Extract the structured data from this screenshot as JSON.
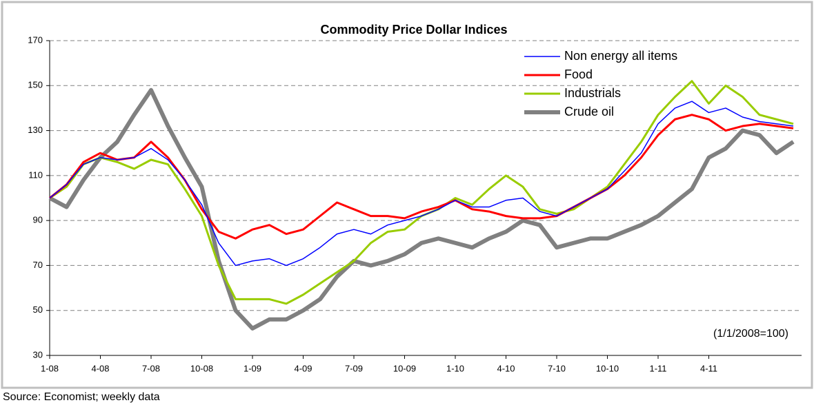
{
  "chart_data": {
    "type": "line",
    "title": "Commodity Price Dollar Indices",
    "annotation": "(1/1/2008=100)",
    "source": "Source: Economist; weekly data",
    "categories": [
      "1-08",
      null,
      null,
      "4-08",
      null,
      null,
      "7-08",
      null,
      null,
      "10-08",
      null,
      null,
      "1-09",
      null,
      null,
      "4-09",
      null,
      null,
      "7-09",
      null,
      null,
      "10-09",
      null,
      null,
      "1-10",
      null,
      null,
      "4-10",
      null,
      null,
      "7-10",
      null,
      null,
      "10-10",
      null,
      null,
      "1-11",
      null,
      null,
      "4-11",
      null,
      null,
      null,
      null,
      null
    ],
    "series": [
      {
        "name": "Non energy all items",
        "color": "#0000ff",
        "width": 1.5,
        "values": [
          100,
          106,
          115,
          118,
          117,
          118,
          122,
          117,
          108,
          97,
          80,
          70,
          72,
          73,
          70,
          73,
          78,
          84,
          86,
          84,
          88,
          90,
          92,
          95,
          99,
          96,
          96,
          99,
          100,
          94,
          92,
          96,
          100,
          104,
          112,
          120,
          133,
          140,
          143,
          138,
          140,
          136,
          134,
          133,
          132
        ]
      },
      {
        "name": "Food",
        "color": "#ff0000",
        "width": 3,
        "values": [
          100,
          106,
          116,
          120,
          117,
          118,
          125,
          118,
          108,
          95,
          85,
          82,
          86,
          88,
          84,
          86,
          92,
          98,
          95,
          92,
          92,
          91,
          94,
          96,
          99,
          95,
          94,
          92,
          91,
          91,
          92,
          96,
          100,
          104,
          110,
          118,
          128,
          135,
          137,
          135,
          130,
          132,
          133,
          132,
          131
        ]
      },
      {
        "name": "Industrials",
        "color": "#99cc00",
        "width": 3,
        "values": [
          100,
          105,
          115,
          118,
          116,
          113,
          117,
          115,
          104,
          92,
          70,
          55,
          55,
          55,
          53,
          57,
          62,
          67,
          72,
          80,
          85,
          86,
          92,
          95,
          100,
          97,
          104,
          110,
          105,
          95,
          93,
          95,
          100,
          105,
          115,
          125,
          137,
          145,
          152,
          142,
          150,
          145,
          137,
          135,
          133
        ]
      },
      {
        "name": "Crude oil",
        "color": "#808080",
        "width": 6,
        "values": [
          100,
          96,
          108,
          118,
          125,
          137,
          148,
          132,
          118,
          105,
          72,
          50,
          42,
          46,
          46,
          50,
          55,
          65,
          72,
          70,
          72,
          75,
          80,
          82,
          80,
          78,
          82,
          85,
          90,
          88,
          78,
          80,
          82,
          82,
          85,
          88,
          92,
          98,
          104,
          118,
          122,
          130,
          128,
          120,
          125
        ]
      }
    ],
    "ylim": [
      30,
      170
    ],
    "yticks": [
      30,
      50,
      70,
      90,
      110,
      130,
      150,
      170
    ],
    "grid": true,
    "legend": "top-right"
  }
}
